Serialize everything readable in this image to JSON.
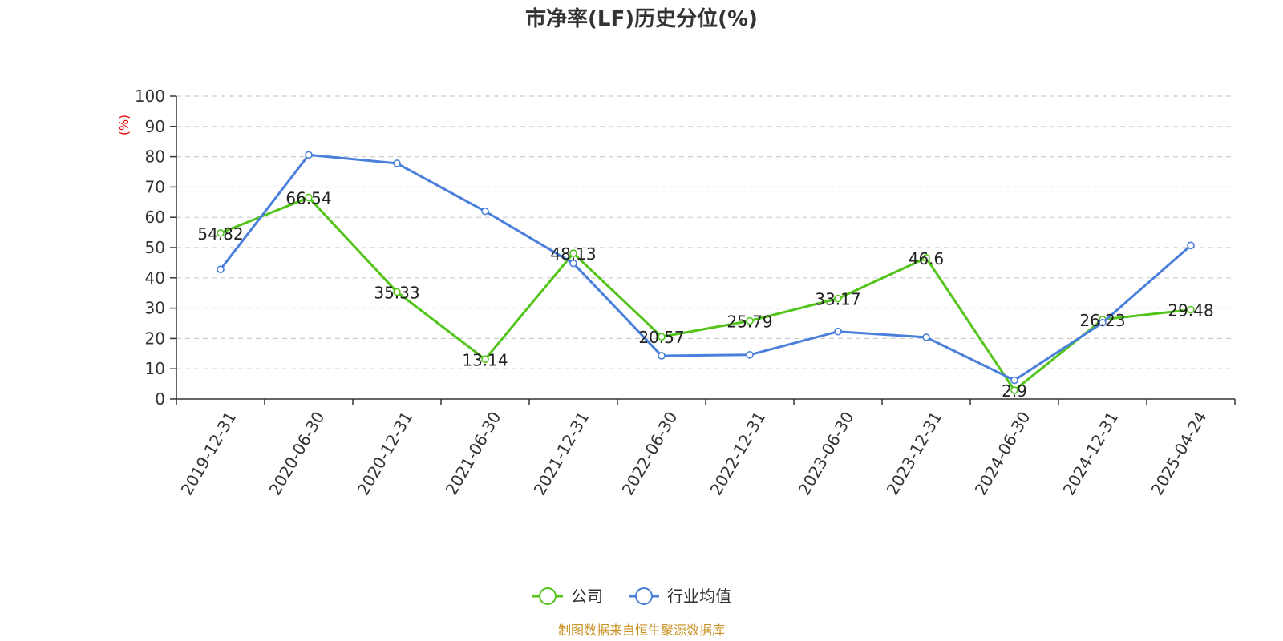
{
  "chart_data": {
    "type": "line",
    "title": "市净率(LF)历史分位(%)",
    "ylabel": "(%)",
    "xlabel": "",
    "ylim": [
      0,
      100
    ],
    "yticks": [
      0,
      10,
      20,
      30,
      40,
      50,
      60,
      70,
      80,
      90,
      100
    ],
    "grid": true,
    "legend_position": "bottom",
    "categories": [
      "2019-12-31",
      "2020-06-30",
      "2020-12-31",
      "2021-06-30",
      "2021-12-31",
      "2022-06-30",
      "2022-12-31",
      "2023-06-30",
      "2023-12-31",
      "2024-06-30",
      "2024-12-31",
      "2025-04-24"
    ],
    "series": [
      {
        "name": "公司",
        "color": "#52c41a",
        "values": [
          54.82,
          66.54,
          35.33,
          13.14,
          48.13,
          20.57,
          25.79,
          33.17,
          46.6,
          2.9,
          26.23,
          29.48
        ],
        "labels": [
          "54.82",
          "66.54",
          "35.33",
          "13.14",
          "48.13",
          "20.57",
          "25.79",
          "33.17",
          "46.6",
          "2.9",
          "26.23",
          "29.48"
        ]
      },
      {
        "name": "行业均值",
        "color": "#4a7fdc",
        "values": [
          42.8,
          80.6,
          77.8,
          62.0,
          44.8,
          14.3,
          14.6,
          22.3,
          20.4,
          6.2,
          25.2,
          50.7
        ]
      }
    ],
    "ylabel_color": "#e00000"
  },
  "source_text": "制图数据来自恒生聚源数据库",
  "source_color": "#c8901f"
}
